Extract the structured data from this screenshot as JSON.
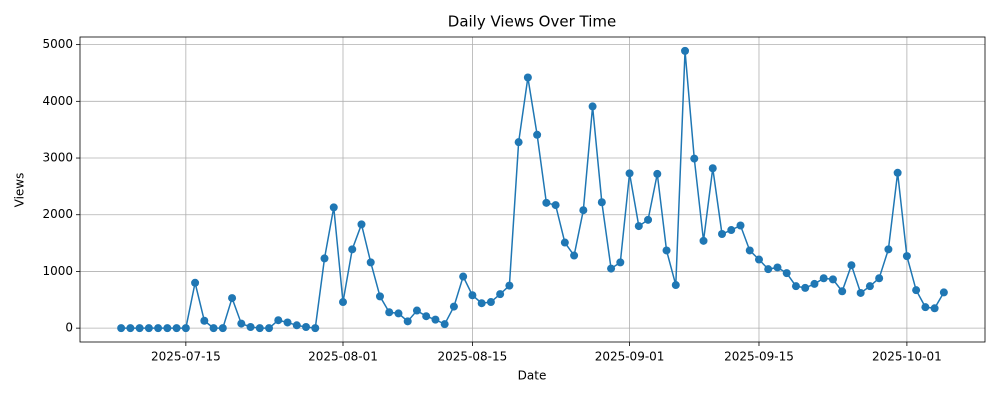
{
  "chart_data": {
    "type": "line",
    "title": "Daily Views Over Time",
    "xlabel": "Date",
    "ylabel": "Views",
    "color": "#1f77b4",
    "grid": true,
    "x": [
      "2025-07-08",
      "2025-07-09",
      "2025-07-10",
      "2025-07-11",
      "2025-07-12",
      "2025-07-13",
      "2025-07-14",
      "2025-07-15",
      "2025-07-16",
      "2025-07-17",
      "2025-07-18",
      "2025-07-19",
      "2025-07-20",
      "2025-07-21",
      "2025-07-22",
      "2025-07-23",
      "2025-07-24",
      "2025-07-25",
      "2025-07-26",
      "2025-07-27",
      "2025-07-28",
      "2025-07-29",
      "2025-07-30",
      "2025-07-31",
      "2025-08-01",
      "2025-08-02",
      "2025-08-03",
      "2025-08-04",
      "2025-08-05",
      "2025-08-06",
      "2025-08-07",
      "2025-08-08",
      "2025-08-09",
      "2025-08-10",
      "2025-08-11",
      "2025-08-12",
      "2025-08-13",
      "2025-08-14",
      "2025-08-15",
      "2025-08-16",
      "2025-08-17",
      "2025-08-18",
      "2025-08-19",
      "2025-08-20",
      "2025-08-21",
      "2025-08-22",
      "2025-08-23",
      "2025-08-24",
      "2025-08-25",
      "2025-08-26",
      "2025-08-27",
      "2025-08-28",
      "2025-08-29",
      "2025-08-30",
      "2025-08-31",
      "2025-09-01",
      "2025-09-02",
      "2025-09-03",
      "2025-09-04",
      "2025-09-05",
      "2025-09-06",
      "2025-09-07",
      "2025-09-08",
      "2025-09-09",
      "2025-09-10",
      "2025-09-11",
      "2025-09-12",
      "2025-09-13",
      "2025-09-14",
      "2025-09-15",
      "2025-09-16",
      "2025-09-17",
      "2025-09-18",
      "2025-09-19",
      "2025-09-20",
      "2025-09-21",
      "2025-09-22",
      "2025-09-23",
      "2025-09-24",
      "2025-09-25",
      "2025-09-26",
      "2025-09-27",
      "2025-09-28",
      "2025-09-29",
      "2025-09-30",
      "2025-10-01",
      "2025-10-02",
      "2025-10-03",
      "2025-10-04",
      "2025-10-05"
    ],
    "values": [
      0,
      0,
      0,
      0,
      0,
      0,
      0,
      0,
      800,
      130,
      0,
      0,
      530,
      80,
      20,
      0,
      0,
      140,
      100,
      50,
      20,
      0,
      1230,
      2130,
      460,
      1390,
      1830,
      1160,
      560,
      280,
      260,
      120,
      310,
      210,
      150,
      70,
      380,
      910,
      580,
      440,
      460,
      600,
      750,
      3280,
      4420,
      3410,
      2210,
      2170,
      1510,
      1280,
      2080,
      3910,
      2220,
      1050,
      1160,
      2730,
      1800,
      1910,
      2720,
      1370,
      760,
      4890,
      2990,
      1540,
      2820,
      1660,
      1730,
      1810,
      1370,
      1210,
      1040,
      1070,
      970,
      740,
      710,
      780,
      880,
      860,
      650,
      1110,
      620,
      740,
      880,
      1390,
      2740,
      1270,
      670,
      370,
      350,
      630
    ],
    "xlim": [
      "2025-07-03T13:12",
      "2025-10-09T10:48"
    ],
    "xticks": [
      "2025-07-15",
      "2025-08-01",
      "2025-08-15",
      "2025-09-01",
      "2025-09-15",
      "2025-10-01"
    ],
    "ylim": [
      -244.5,
      5134.5
    ],
    "yticks": [
      0,
      1000,
      2000,
      3000,
      4000,
      5000
    ]
  }
}
